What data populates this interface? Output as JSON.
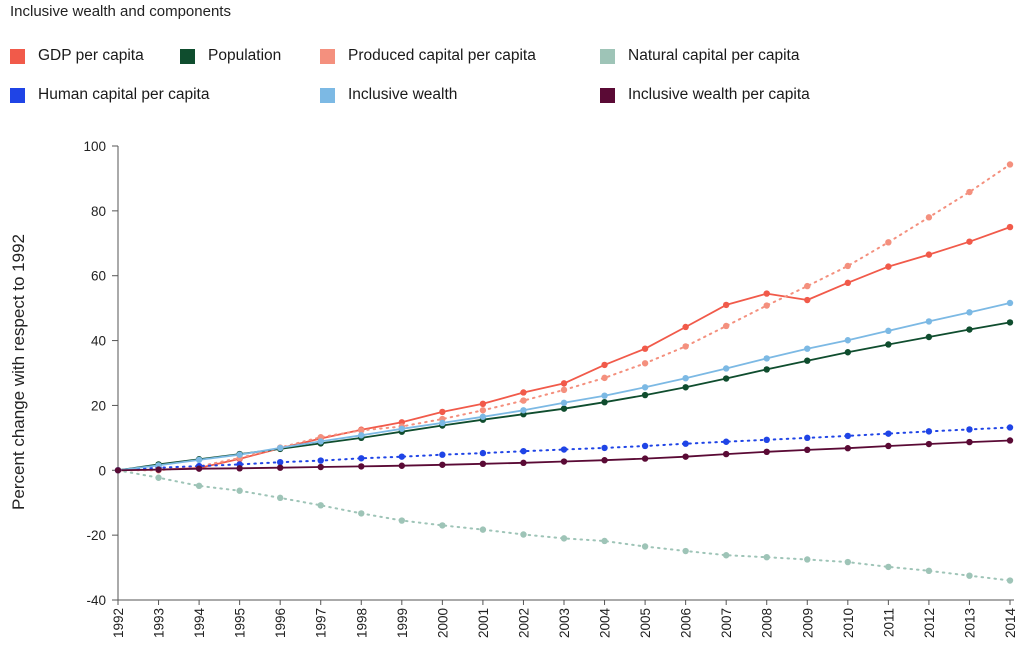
{
  "title": "Inclusive wealth and components",
  "chart_data": {
    "type": "line",
    "title": "Inclusive wealth and components",
    "xlabel": "",
    "ylabel": "Percent change with respect to 1992",
    "ylim": [
      -40,
      100
    ],
    "yticks": [
      100,
      80,
      60,
      40,
      20,
      0,
      -20,
      -40
    ],
    "x": [
      "1992",
      "1993",
      "1994",
      "1995",
      "1996",
      "1997",
      "1998",
      "1999",
      "2000",
      "2001",
      "2002",
      "2003",
      "2004",
      "2005",
      "2006",
      "2007",
      "2008",
      "2009",
      "2010",
      "2011",
      "2012",
      "2013",
      "2014"
    ],
    "grid": false,
    "legend_position": "top",
    "series": [
      {
        "name": "GDP per capita",
        "color": "#f15a4a",
        "style": "solid",
        "values": [
          0,
          0.2,
          0.7,
          3.5,
          6.8,
          9.8,
          12.5,
          14.8,
          18,
          20.5,
          24,
          26.8,
          32.5,
          37.5,
          44.2,
          51,
          54.5,
          52.5,
          57.8,
          62.8,
          66.5,
          70.5,
          75
        ]
      },
      {
        "name": "Population",
        "color": "#0f4d2e",
        "style": "solid",
        "values": [
          0,
          1.8,
          3.4,
          5,
          6.6,
          8.3,
          10,
          11.9,
          13.8,
          15.6,
          17.3,
          19,
          21,
          23.2,
          25.6,
          28.3,
          31.1,
          33.8,
          36.4,
          38.8,
          41.1,
          43.4,
          45.6
        ]
      },
      {
        "name": "Produced capital per capita",
        "color": "#f4907e",
        "style": "dotted",
        "values": [
          0,
          0,
          1.2,
          3.8,
          7,
          10.2,
          12.3,
          13.5,
          15.8,
          18.5,
          21.5,
          24.8,
          28.5,
          33,
          38.2,
          44.5,
          50.8,
          56.8,
          63,
          70.3,
          78,
          85.8,
          94.3
        ]
      },
      {
        "name": "Natural capital per capita",
        "color": "#9ec4b7",
        "style": "dotted",
        "values": [
          0,
          -2.3,
          -4.8,
          -6.3,
          -8.5,
          -10.8,
          -13.3,
          -15.5,
          -17,
          -18.3,
          -19.8,
          -21,
          -21.8,
          -23.5,
          -24.9,
          -26.2,
          -26.8,
          -27.5,
          -28.3,
          -29.8,
          -31,
          -32.5,
          -34
        ]
      },
      {
        "name": "Human capital per capita",
        "color": "#1f44e6",
        "style": "dotted",
        "values": [
          0,
          0.8,
          1.3,
          1.8,
          2.5,
          3,
          3.7,
          4.2,
          4.8,
          5.3,
          5.9,
          6.4,
          6.9,
          7.5,
          8.2,
          8.8,
          9.4,
          10,
          10.6,
          11.3,
          12,
          12.6,
          13.2
        ]
      },
      {
        "name": "Inclusive wealth",
        "color": "#7cb9e4",
        "style": "solid",
        "values": [
          0,
          1.5,
          3.2,
          4.8,
          6.9,
          8.9,
          10.8,
          12.8,
          14.6,
          16.5,
          18.5,
          20.8,
          23,
          25.6,
          28.4,
          31.4,
          34.5,
          37.5,
          40.1,
          43,
          45.9,
          48.7,
          51.6
        ]
      },
      {
        "name": "Inclusive wealth per capita",
        "color": "#5a0a35",
        "style": "solid",
        "values": [
          0,
          0.2,
          0.5,
          0.6,
          0.8,
          1,
          1.2,
          1.4,
          1.7,
          2,
          2.3,
          2.7,
          3.1,
          3.6,
          4.2,
          5,
          5.7,
          6.3,
          6.8,
          7.5,
          8.1,
          8.7,
          9.2
        ]
      }
    ]
  },
  "legend": [
    {
      "label": "GDP per capita",
      "color": "#f15a4a"
    },
    {
      "label": "Population",
      "color": "#0f4d2e"
    },
    {
      "label": "Produced capital per capita",
      "color": "#f4907e"
    },
    {
      "label": "Natural capital per capita",
      "color": "#9ec4b7"
    },
    {
      "label": "Human capital per capita",
      "color": "#1f44e6"
    },
    {
      "label": "Inclusive wealth",
      "color": "#7cb9e4"
    },
    {
      "label": "Inclusive wealth per capita",
      "color": "#5a0a35"
    }
  ]
}
